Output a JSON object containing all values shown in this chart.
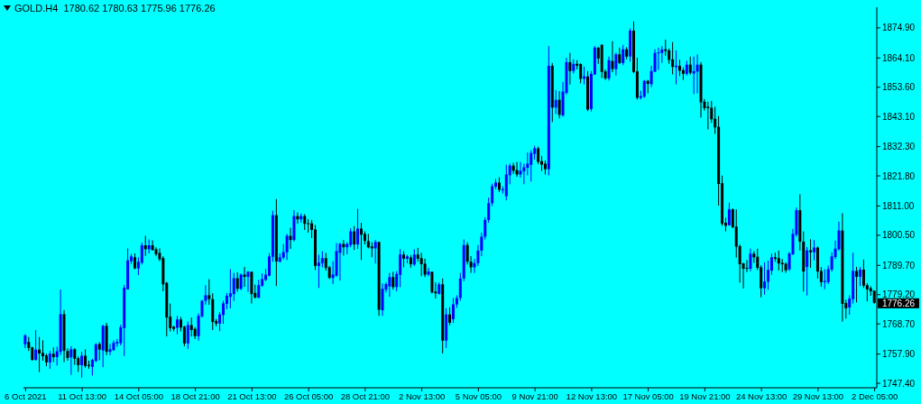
{
  "chart_data": {
    "type": "candlestick",
    "title": "GOLD.H4  1780.62 1780.63 1775.96 1776.26",
    "categories": [
      "6 Oct 2021",
      null,
      null,
      null,
      null,
      null,
      null,
      null,
      null,
      null,
      null,
      null,
      null,
      null,
      null,
      null,
      "11 Oct 13:00",
      null,
      null,
      null,
      null,
      null,
      null,
      null,
      null,
      null,
      null,
      null,
      null,
      null,
      null,
      null,
      "14 Oct 05:00",
      null,
      null,
      null,
      null,
      null,
      null,
      null,
      null,
      null,
      null,
      null,
      null,
      null,
      null,
      null,
      "18 Oct 21:00",
      null,
      null,
      null,
      null,
      null,
      null,
      null,
      null,
      null,
      null,
      null,
      null,
      null,
      null,
      null,
      "21 Oct 13:00",
      null,
      null,
      null,
      null,
      null,
      null,
      null,
      null,
      null,
      null,
      null,
      null,
      null,
      null,
      null,
      "26 Oct 05:00",
      null,
      null,
      null,
      null,
      null,
      null,
      null,
      null,
      null,
      null,
      null,
      null,
      null,
      null,
      null,
      "28 Oct 21:00",
      null,
      null,
      null,
      null,
      null,
      null,
      null,
      null,
      null,
      null,
      null,
      null,
      null,
      null,
      null,
      "2 Nov 13:00",
      null,
      null,
      null,
      null,
      null,
      null,
      null,
      null,
      null,
      null,
      null,
      null,
      null,
      null,
      null,
      "5 Nov 05:00",
      null,
      null,
      null,
      null,
      null,
      null,
      null,
      null,
      null,
      null,
      null,
      null,
      null,
      null,
      null,
      "9 Nov 21:00",
      null,
      null,
      null,
      null,
      null,
      null,
      null,
      null,
      null,
      null,
      null,
      null,
      null,
      null,
      null,
      "12 Nov 13:00",
      null,
      null,
      null,
      null,
      null,
      null,
      null,
      null,
      null,
      null,
      null,
      null,
      null,
      null,
      null,
      "17 Nov 05:00",
      null,
      null,
      null,
      null,
      null,
      null,
      null,
      null,
      null,
      null,
      null,
      null,
      null,
      null,
      null,
      "19 Nov 21:00",
      null,
      null,
      null,
      null,
      null,
      null,
      null,
      null,
      null,
      null,
      null,
      null,
      null,
      null,
      null,
      "24 Nov 13:00",
      null,
      null,
      null,
      null,
      null,
      null,
      null,
      null,
      null,
      null,
      null,
      null,
      null,
      null,
      null,
      "29 Nov 13:00",
      null,
      null,
      null,
      null,
      null,
      null,
      null,
      null,
      null,
      null,
      null,
      null,
      null,
      null,
      null,
      "2 Dec 05:00"
    ],
    "ohlc": [
      [
        1761.4,
        1765,
        1760,
        1764.6
      ],
      [
        1762.2,
        1764,
        1759,
        1760.1
      ],
      [
        1760.3,
        1760.5,
        1755.5,
        1755.8
      ],
      [
        1755.8,
        1766.5,
        1755.5,
        1759.5
      ],
      [
        1759.5,
        1764,
        1751.4,
        1758.1
      ],
      [
        1758.3,
        1762.8,
        1755.5,
        1757.1
      ],
      [
        1757.4,
        1758,
        1753.5,
        1754.9
      ],
      [
        1754.9,
        1759,
        1752.6,
        1758
      ],
      [
        1758,
        1760.3,
        1755,
        1756.8
      ],
      [
        1756.8,
        1760.5,
        1753.8,
        1758.9
      ],
      [
        1758.7,
        1781,
        1757.5,
        1772.2
      ],
      [
        1772.2,
        1773.7,
        1755,
        1759.1
      ],
      [
        1759,
        1760,
        1755.5,
        1756.5
      ],
      [
        1756.7,
        1760.7,
        1750.4,
        1759.6
      ],
      [
        1759.6,
        1760,
        1754,
        1756.2
      ],
      [
        1756.4,
        1757,
        1751.5,
        1753.9
      ],
      [
        1753.9,
        1758.7,
        1749.4,
        1757.3
      ],
      [
        1757.3,
        1759.6,
        1753,
        1753.6
      ],
      [
        1754,
        1755.5,
        1752.6,
        1753.6
      ],
      [
        1753.3,
        1756.2,
        1750.2,
        1755.8
      ],
      [
        1755.4,
        1761.8,
        1755,
        1761.4
      ],
      [
        1761.5,
        1762.2,
        1755.7,
        1759.5
      ],
      [
        1759.2,
        1768.4,
        1753.2,
        1768
      ],
      [
        1768,
        1769.1,
        1757.5,
        1758.7
      ],
      [
        1758.7,
        1761.5,
        1757.5,
        1759.6
      ],
      [
        1759.3,
        1762.8,
        1759,
        1761.9
      ],
      [
        1761.7,
        1763.3,
        1760.5,
        1762.3
      ],
      [
        1761.8,
        1768.4,
        1761,
        1767.5
      ],
      [
        1767.2,
        1782.7,
        1757.2,
        1781.7
      ],
      [
        1781.1,
        1795.8,
        1781,
        1791.5
      ],
      [
        1791.2,
        1793.8,
        1790.2,
        1792.9
      ],
      [
        1792.6,
        1794,
        1788.3,
        1788.6
      ],
      [
        1788.6,
        1792.6,
        1786.2,
        1791
      ],
      [
        1790.6,
        1797.9,
        1790,
        1796.9
      ],
      [
        1796.9,
        1800.3,
        1793.1,
        1795.5
      ],
      [
        1795.5,
        1799,
        1794,
        1796.9
      ],
      [
        1796.9,
        1798.7,
        1795,
        1795.2
      ],
      [
        1795.5,
        1796.2,
        1793,
        1793.7
      ],
      [
        1794.2,
        1795.8,
        1791.2,
        1791.9
      ],
      [
        1792.3,
        1793,
        1780.4,
        1782.9
      ],
      [
        1783.4,
        1783.8,
        1764.2,
        1771
      ],
      [
        1771.3,
        1776,
        1766,
        1767.2
      ],
      [
        1767.7,
        1768,
        1766,
        1766.9
      ],
      [
        1767.3,
        1771.6,
        1765,
        1770.3
      ],
      [
        1770.3,
        1771.2,
        1766,
        1767.4
      ],
      [
        1767.7,
        1768,
        1760.7,
        1761.7
      ],
      [
        1761.7,
        1769.6,
        1759.8,
        1768.3
      ],
      [
        1768.3,
        1771,
        1764.2,
        1766.5
      ],
      [
        1766.9,
        1767.5,
        1763.3,
        1764.3
      ],
      [
        1764.3,
        1772.5,
        1762.7,
        1771.6
      ],
      [
        1771.4,
        1777.3,
        1771,
        1777
      ],
      [
        1777,
        1782.6,
        1775.6,
        1779
      ],
      [
        1779,
        1784.8,
        1775.5,
        1777.6
      ],
      [
        1777.6,
        1779.7,
        1766.5,
        1769.4
      ],
      [
        1769.8,
        1770.5,
        1767.8,
        1768.8
      ],
      [
        1768.8,
        1773,
        1766.1,
        1772.1
      ],
      [
        1771.9,
        1777,
        1768.7,
        1776.1
      ],
      [
        1775.9,
        1779.8,
        1774,
        1778.8
      ],
      [
        1778.4,
        1788.3,
        1774.3,
        1779.7
      ],
      [
        1779.4,
        1787,
        1776.9,
        1785.1
      ],
      [
        1785.1,
        1787.2,
        1780.2,
        1781.3
      ],
      [
        1781.3,
        1786.8,
        1780.8,
        1786.4
      ],
      [
        1786.4,
        1789.1,
        1782,
        1785.6
      ],
      [
        1785.6,
        1787.7,
        1780.2,
        1787.4
      ],
      [
        1787.4,
        1787.5,
        1776,
        1779.4
      ],
      [
        1779.8,
        1782.8,
        1777.8,
        1778.2
      ],
      [
        1778.1,
        1784.5,
        1778,
        1782.6
      ],
      [
        1782.4,
        1786.8,
        1782,
        1784.8
      ],
      [
        1784.5,
        1788.5,
        1784,
        1786.4
      ],
      [
        1786,
        1794.1,
        1785.8,
        1792.9
      ],
      [
        1792.8,
        1809.3,
        1791,
        1807.7
      ],
      [
        1807.7,
        1813.5,
        1782.3,
        1791.1
      ],
      [
        1791,
        1794,
        1790.8,
        1792.6
      ],
      [
        1792.5,
        1797.4,
        1791.8,
        1794.5
      ],
      [
        1794.4,
        1801,
        1791.6,
        1800.3
      ],
      [
        1800.3,
        1803.2,
        1795.6,
        1798.8
      ],
      [
        1798.8,
        1809.5,
        1798.2,
        1807.4
      ],
      [
        1807.4,
        1808.7,
        1804.6,
        1806.2
      ],
      [
        1806.2,
        1808.3,
        1805,
        1807.4
      ],
      [
        1807.4,
        1808.1,
        1802.4,
        1804.6
      ],
      [
        1804.8,
        1806.3,
        1801.4,
        1804.6
      ],
      [
        1804.8,
        1806,
        1799.5,
        1802.4
      ],
      [
        1802.6,
        1804.2,
        1788,
        1789.5
      ],
      [
        1789.5,
        1793.5,
        1781.6,
        1790.7
      ],
      [
        1790.5,
        1794.8,
        1789,
        1792.3
      ],
      [
        1792.3,
        1794.2,
        1787.8,
        1788.8
      ],
      [
        1789,
        1789.5,
        1784.8,
        1785.2
      ],
      [
        1785.2,
        1791.2,
        1783,
        1786.4
      ],
      [
        1786,
        1797.7,
        1785.6,
        1794.8
      ],
      [
        1794.2,
        1797.8,
        1784.2,
        1797.4
      ],
      [
        1797.4,
        1798.8,
        1793.2,
        1796.2
      ],
      [
        1796.2,
        1798,
        1793.7,
        1797.4
      ],
      [
        1797,
        1803,
        1796.2,
        1801.9
      ],
      [
        1801.9,
        1803.8,
        1795.2,
        1797.2
      ],
      [
        1797.2,
        1810,
        1795.6,
        1802.9
      ],
      [
        1802.9,
        1805,
        1791.6,
        1800.7
      ],
      [
        1801,
        1801.9,
        1797.2,
        1798.5
      ],
      [
        1798.4,
        1801,
        1795.8,
        1796.2
      ],
      [
        1796.5,
        1798,
        1792.6,
        1795.8
      ],
      [
        1795.8,
        1798.8,
        1790.4,
        1798.1
      ],
      [
        1798.1,
        1798.2,
        1771.6,
        1773.8
      ],
      [
        1773.6,
        1783.2,
        1771.6,
        1781.3
      ],
      [
        1781,
        1783.6,
        1780,
        1783
      ],
      [
        1782.1,
        1787,
        1778.4,
        1785.5
      ],
      [
        1785.5,
        1787.4,
        1781,
        1781.9
      ],
      [
        1781.9,
        1787.6,
        1780.4,
        1786.6
      ],
      [
        1786.3,
        1795.5,
        1781.9,
        1793.6
      ],
      [
        1793.6,
        1794.8,
        1789,
        1792.1
      ],
      [
        1792.1,
        1793.5,
        1790.5,
        1792.9
      ],
      [
        1792.5,
        1793.3,
        1788.9,
        1790.1
      ],
      [
        1790,
        1795.5,
        1789.5,
        1793.6
      ],
      [
        1793.6,
        1796,
        1791,
        1792.1
      ],
      [
        1792.3,
        1794.2,
        1785.8,
        1790.1
      ],
      [
        1790.3,
        1792.1,
        1785.5,
        1786.4
      ],
      [
        1786.4,
        1788.8,
        1785.8,
        1787.5
      ],
      [
        1787.4,
        1787.5,
        1779.6,
        1780
      ],
      [
        1780.3,
        1783.6,
        1777.8,
        1779.7
      ],
      [
        1779.5,
        1783.6,
        1779.2,
        1782.9
      ],
      [
        1782.9,
        1785,
        1758.1,
        1762.7
      ],
      [
        1762.7,
        1774.3,
        1760.1,
        1772.1
      ],
      [
        1772.1,
        1774.7,
        1768.2,
        1769.1
      ],
      [
        1770.4,
        1778,
        1769,
        1775.7
      ],
      [
        1775.7,
        1779,
        1774.5,
        1778
      ],
      [
        1778,
        1787,
        1777,
        1785
      ],
      [
        1785,
        1799,
        1784,
        1797
      ],
      [
        1797,
        1798,
        1790,
        1791
      ],
      [
        1791,
        1793,
        1787,
        1789
      ],
      [
        1789,
        1792,
        1787,
        1790.5
      ],
      [
        1790.5,
        1797,
        1789.5,
        1795
      ],
      [
        1795,
        1801.5,
        1793,
        1800
      ],
      [
        1800,
        1807,
        1799,
        1806
      ],
      [
        1806,
        1814,
        1805,
        1812
      ],
      [
        1812,
        1819,
        1811,
        1818.1
      ],
      [
        1817.9,
        1820.7,
        1817,
        1819.4
      ],
      [
        1819.4,
        1821.3,
        1816,
        1816.8
      ],
      [
        1816.8,
        1818,
        1815.5,
        1817
      ],
      [
        1814.5,
        1825.8,
        1813,
        1822.3
      ],
      [
        1822,
        1826.2,
        1818.8,
        1825.5
      ],
      [
        1825.5,
        1826.5,
        1822.5,
        1823.6
      ],
      [
        1823.9,
        1826.8,
        1821.5,
        1822.3
      ],
      [
        1822.3,
        1826.8,
        1821.2,
        1823.6
      ],
      [
        1823.4,
        1826.2,
        1818.8,
        1824.9
      ],
      [
        1824.7,
        1830.2,
        1822,
        1826.2
      ],
      [
        1825.8,
        1831,
        1819.8,
        1830
      ],
      [
        1829.7,
        1832.6,
        1827.7,
        1831.7
      ],
      [
        1831.7,
        1832.3,
        1826,
        1826.8
      ],
      [
        1827.1,
        1829,
        1823.5,
        1825.8
      ],
      [
        1826.2,
        1827.3,
        1822.3,
        1824.2
      ],
      [
        1824.2,
        1868.4,
        1822,
        1861.3
      ],
      [
        1861.3,
        1862.3,
        1841.1,
        1846.3
      ],
      [
        1846.3,
        1852.6,
        1844,
        1849.1
      ],
      [
        1849.1,
        1852.2,
        1842.4,
        1843.7
      ],
      [
        1843.5,
        1855.5,
        1843,
        1852
      ],
      [
        1851.6,
        1864.2,
        1851,
        1862.6
      ],
      [
        1862.6,
        1865.9,
        1854.6,
        1859.4
      ],
      [
        1859.4,
        1863.6,
        1858.5,
        1862
      ],
      [
        1862,
        1863.3,
        1860,
        1861.3
      ],
      [
        1861.9,
        1862.2,
        1855,
        1856.6
      ],
      [
        1856.6,
        1861,
        1854.6,
        1857.5
      ],
      [
        1857.5,
        1859.4,
        1845,
        1845.6
      ],
      [
        1845.8,
        1859.4,
        1844.9,
        1858.4
      ],
      [
        1858.2,
        1868.4,
        1858,
        1867.8
      ],
      [
        1867.8,
        1868,
        1862,
        1863.9
      ],
      [
        1868.8,
        1869,
        1856.9,
        1859.1
      ],
      [
        1859.3,
        1860,
        1856.2,
        1856.8
      ],
      [
        1856.8,
        1864.6,
        1856,
        1863.3
      ],
      [
        1863,
        1870.1,
        1859,
        1860.1
      ],
      [
        1860.1,
        1866,
        1857.8,
        1865.4
      ],
      [
        1865.4,
        1867.8,
        1861.9,
        1862.3
      ],
      [
        1862.3,
        1868.8,
        1861.5,
        1867.2
      ],
      [
        1867.2,
        1868,
        1863.6,
        1864.6
      ],
      [
        1864.6,
        1874.7,
        1862.8,
        1873.9
      ],
      [
        1873.9,
        1877.2,
        1858.6,
        1859.1
      ],
      [
        1859.3,
        1864.2,
        1849.2,
        1849.8
      ],
      [
        1849.8,
        1852.3,
        1849.2,
        1850.4
      ],
      [
        1850.2,
        1856.2,
        1849.8,
        1855.9
      ],
      [
        1855.9,
        1856.2,
        1851.4,
        1854.8
      ],
      [
        1854.7,
        1861.3,
        1853.6,
        1859.4
      ],
      [
        1859.2,
        1867.2,
        1859,
        1865.9
      ],
      [
        1865.9,
        1867.8,
        1859.8,
        1866.1
      ],
      [
        1865.9,
        1868.4,
        1862.3,
        1867.2
      ],
      [
        1867.2,
        1870.7,
        1864.9,
        1866.6
      ],
      [
        1866.8,
        1867.5,
        1862,
        1863.4
      ],
      [
        1863.6,
        1869.8,
        1858.2,
        1860.9
      ],
      [
        1860.8,
        1866.8,
        1854.6,
        1861.3
      ],
      [
        1861.3,
        1863.5,
        1857.6,
        1859.5
      ],
      [
        1859.7,
        1860.7,
        1856.2,
        1858.4
      ],
      [
        1858.4,
        1863.1,
        1857.8,
        1861.7
      ],
      [
        1861.7,
        1864.6,
        1858.1,
        1858.8
      ],
      [
        1858.5,
        1864.6,
        1851.1,
        1859.4
      ],
      [
        1859.2,
        1865.4,
        1851.4,
        1861.7
      ],
      [
        1861.7,
        1862.6,
        1842.7,
        1848.2
      ],
      [
        1848.4,
        1849.4,
        1845.2,
        1846.1
      ],
      [
        1846.6,
        1848.4,
        1838.5,
        1846.1
      ],
      [
        1846.2,
        1848.7,
        1840.8,
        1842.1
      ],
      [
        1842.3,
        1846.6,
        1836.9,
        1839.2
      ],
      [
        1839.4,
        1843.3,
        1811.1,
        1818.9
      ],
      [
        1819.2,
        1821.9,
        1803.9,
        1804.6
      ],
      [
        1805,
        1806.8,
        1801.9,
        1803.9
      ],
      [
        1804.1,
        1812.2,
        1804,
        1809.8
      ],
      [
        1809.8,
        1810.1,
        1803,
        1803.4
      ],
      [
        1803.6,
        1809.8,
        1792.5,
        1796.4
      ],
      [
        1796.6,
        1797.2,
        1783.5,
        1790.1
      ],
      [
        1790.4,
        1790.6,
        1781.4,
        1788.5
      ],
      [
        1788.8,
        1791.6,
        1787.3,
        1788.5
      ],
      [
        1788.5,
        1795.7,
        1787.6,
        1793.9
      ],
      [
        1793.9,
        1794.8,
        1790.6,
        1792.6
      ],
      [
        1792.8,
        1795.7,
        1788,
        1788.8
      ],
      [
        1789,
        1789.7,
        1778.2,
        1781.5
      ],
      [
        1781.5,
        1790.8,
        1779.2,
        1783.9
      ],
      [
        1783.8,
        1791.4,
        1781,
        1788.1
      ],
      [
        1787.8,
        1793.9,
        1786.3,
        1792.6
      ],
      [
        1792.6,
        1794.3,
        1791,
        1792.1
      ],
      [
        1792.3,
        1795,
        1787.9,
        1790.4
      ],
      [
        1790.6,
        1792,
        1787.3,
        1790.1
      ],
      [
        1790.3,
        1790.8,
        1787,
        1787.9
      ],
      [
        1788.3,
        1794.5,
        1787.7,
        1794
      ],
      [
        1793.7,
        1802.8,
        1793.4,
        1801
      ],
      [
        1800.7,
        1810.5,
        1800,
        1809.5
      ],
      [
        1809.5,
        1815.2,
        1795,
        1798.2
      ],
      [
        1798.2,
        1801.9,
        1780.3,
        1787.5
      ],
      [
        1789.1,
        1796.3,
        1778.9,
        1795.1
      ],
      [
        1795.1,
        1799.1,
        1788.8,
        1794.4
      ],
      [
        1794.4,
        1798.8,
        1791.5,
        1796.1
      ],
      [
        1796.1,
        1796.5,
        1785,
        1787.5
      ],
      [
        1787.7,
        1789.1,
        1782,
        1783.7
      ],
      [
        1783.7,
        1788.3,
        1781.1,
        1784.1
      ],
      [
        1783.7,
        1789.6,
        1783,
        1788.4
      ],
      [
        1788.2,
        1794.4,
        1787.4,
        1792.9
      ],
      [
        1792.7,
        1798.6,
        1792,
        1795.7
      ],
      [
        1795.5,
        1805.4,
        1795,
        1802.2
      ],
      [
        1802.2,
        1808.4,
        1769.5,
        1775.9
      ],
      [
        1776.2,
        1777.4,
        1770.6,
        1774.3
      ],
      [
        1774.6,
        1779,
        1772,
        1777.8
      ],
      [
        1777.6,
        1794.2,
        1776,
        1787.7
      ],
      [
        1787.7,
        1789.2,
        1776.4,
        1785.6
      ],
      [
        1785.6,
        1789.1,
        1782.3,
        1788.2
      ],
      [
        1788.2,
        1791.8,
        1781.6,
        1782.4
      ],
      [
        1782.6,
        1783.3,
        1776.8,
        1781.1
      ],
      [
        1781.5,
        1782.2,
        1778.8,
        1780.4
      ],
      [
        1780.62,
        1780.63,
        1775.96,
        1776.26
      ]
    ],
    "colors": [
      "#0000ff",
      "#000000",
      "#000000",
      "#0000ff",
      "#000000",
      "#000000",
      "#000000",
      "#0000ff",
      "#000000",
      "#0000ff",
      "#0000ff",
      "#000000",
      "#000000",
      "#0000ff",
      "#000000",
      "#000000",
      "#0000ff",
      "#000000",
      "#000000",
      "#0000ff",
      "#0000ff",
      "#000000",
      "#0000ff",
      "#000000",
      "#0000ff",
      "#0000ff",
      "#0000ff",
      "#0000ff",
      "#0000ff",
      "#0000ff",
      "#0000ff",
      "#000000",
      "#0000ff",
      "#0000ff",
      "#000000",
      "#0000ff",
      "#000000",
      "#000000",
      "#000000",
      "#000000",
      "#000000",
      "#000000",
      "#000000",
      "#0000ff",
      "#000000",
      "#000000",
      "#0000ff",
      "#000000",
      "#000000",
      "#0000ff",
      "#0000ff",
      "#0000ff",
      "#000000",
      "#000000",
      "#000000",
      "#0000ff",
      "#0000ff",
      "#0000ff",
      "#0000ff",
      "#0000ff",
      "#000000",
      "#0000ff",
      "#000000",
      "#0000ff",
      "#000000",
      "#000000",
      "#0000ff",
      "#0000ff",
      "#0000ff",
      "#0000ff",
      "#0000ff",
      "#000000",
      "#0000ff",
      "#0000ff",
      "#0000ff",
      "#000000",
      "#0000ff",
      "#000000",
      "#0000ff",
      "#000000",
      "#000000",
      "#000000",
      "#000000",
      "#0000ff",
      "#0000ff",
      "#000000",
      "#000000",
      "#0000ff",
      "#0000ff",
      "#0000ff",
      "#000000",
      "#0000ff",
      "#0000ff",
      "#000000",
      "#0000ff",
      "#000000",
      "#000000",
      "#000000",
      "#000000",
      "#0000ff",
      "#000000",
      "#0000ff",
      "#0000ff",
      "#0000ff",
      "#000000",
      "#0000ff",
      "#0000ff",
      "#000000",
      "#0000ff",
      "#000000",
      "#0000ff",
      "#000000",
      "#000000",
      "#000000",
      "#0000ff",
      "#000000",
      "#000000",
      "#0000ff",
      "#000000",
      "#0000ff",
      "#000000",
      "#0000ff",
      "#0000ff",
      "#0000ff",
      "#0000ff",
      "#000000",
      "#000000",
      "#0000ff",
      "#0000ff",
      "#0000ff",
      "#0000ff",
      "#0000ff",
      "#0000ff",
      "#0000ff",
      "#000000",
      "#0000ff",
      "#0000ff",
      "#0000ff",
      "#000000",
      "#000000",
      "#0000ff",
      "#0000ff",
      "#0000ff",
      "#0000ff",
      "#0000ff",
      "#000000",
      "#000000",
      "#000000",
      "#0000ff",
      "#000000",
      "#0000ff",
      "#000000",
      "#0000ff",
      "#0000ff",
      "#000000",
      "#0000ff",
      "#000000",
      "#000000",
      "#0000ff",
      "#000000",
      "#0000ff",
      "#0000ff",
      "#000000",
      "#000000",
      "#000000",
      "#0000ff",
      "#000000",
      "#0000ff",
      "#000000",
      "#0000ff",
      "#000000",
      "#0000ff",
      "#000000",
      "#000000",
      "#0000ff",
      "#0000ff",
      "#000000",
      "#0000ff",
      "#0000ff",
      "#0000ff",
      "#0000ff",
      "#000000",
      "#000000",
      "#000000",
      "#0000ff",
      "#000000",
      "#000000",
      "#0000ff",
      "#000000",
      "#0000ff",
      "#0000ff",
      "#000000",
      "#000000",
      "#000000",
      "#000000",
      "#000000",
      "#000000",
      "#000000",
      "#000000",
      "#0000ff",
      "#000000",
      "#000000",
      "#000000",
      "#000000",
      "#000000",
      "#0000ff",
      "#000000",
      "#000000",
      "#000000",
      "#0000ff",
      "#0000ff",
      "#0000ff",
      "#000000",
      "#000000",
      "#000000",
      "#000000",
      "#0000ff",
      "#0000ff",
      "#0000ff",
      "#000000",
      "#000000",
      "#0000ff",
      "#000000",
      "#0000ff",
      "#000000",
      "#000000",
      "#0000ff",
      "#0000ff",
      "#0000ff",
      "#0000ff",
      "#0000ff",
      "#000000",
      "#000000",
      "#0000ff",
      "#0000ff",
      "#000000",
      "#0000ff",
      "#000000",
      "#000000",
      "#000000",
      "#000000"
    ],
    "ylim": [
      1745.8,
      1882.3
    ],
    "yticks": [
      {
        "value": 1874.9,
        "label": "1874.90"
      },
      {
        "value": 1864.1,
        "label": "1864.10"
      },
      {
        "value": 1853.6,
        "label": "1853.60"
      },
      {
        "value": 1843.1,
        "label": "1843.10"
      },
      {
        "value": 1832.3,
        "label": "1832.30"
      },
      {
        "value": 1821.8,
        "label": "1821.80"
      },
      {
        "value": 1811,
        "label": "1811.00"
      },
      {
        "value": 1800.5,
        "label": "1800.50"
      },
      {
        "value": 1789.7,
        "label": "1789.70"
      },
      {
        "value": 1779.2,
        "label": "1779.20"
      },
      {
        "value": 1768.7,
        "label": "1768.70"
      },
      {
        "value": 1757.9,
        "label": "1757.90"
      },
      {
        "value": 1747.4,
        "label": "1747.40"
      }
    ],
    "annotations": [
      {
        "text": "1776.26",
        "x": "2 Dec 05:00",
        "y": 1776.26
      }
    ],
    "grid": false
  }
}
